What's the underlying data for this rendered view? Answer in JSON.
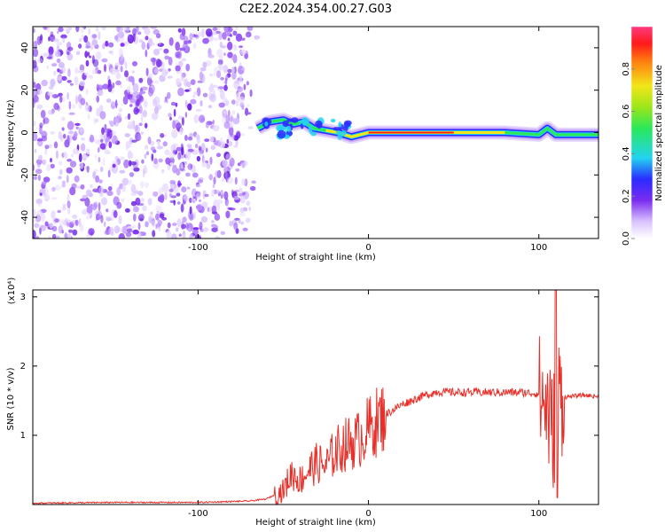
{
  "title": "C2E2.2024.354.00.27.G03",
  "colors": {
    "snr_line": "#e8302a",
    "speckle": "#7b2cf0",
    "axis": "#000000"
  },
  "chart_data": [
    {
      "type": "heatmap",
      "xlabel": "Height of straight line (km)",
      "ylabel": "Frequency (Hz)",
      "xlim": [
        -197,
        135
      ],
      "ylim": [
        -50,
        50
      ],
      "x_ticks": [
        -100,
        0,
        100
      ],
      "x_tick_labels": [
        "-100",
        "0",
        "100"
      ],
      "y_ticks": [
        -40,
        -20,
        0,
        20,
        40
      ],
      "y_tick_labels": [
        "-40",
        "-20",
        "0",
        "20",
        "40"
      ],
      "noise_region_x": [
        -197,
        -65
      ],
      "signal_track": [
        {
          "x": -65,
          "y": 2
        },
        {
          "x": -58,
          "y": 5
        },
        {
          "x": -50,
          "y": 6
        },
        {
          "x": -44,
          "y": 4
        },
        {
          "x": -38,
          "y": 5
        },
        {
          "x": -32,
          "y": 2
        },
        {
          "x": -25,
          "y": 1
        },
        {
          "x": -18,
          "y": 0
        },
        {
          "x": -10,
          "y": -2
        },
        {
          "x": 0,
          "y": 0
        },
        {
          "x": 20,
          "y": 0
        },
        {
          "x": 50,
          "y": 0
        },
        {
          "x": 80,
          "y": 0
        },
        {
          "x": 100,
          "y": -1
        },
        {
          "x": 105,
          "y": 2
        },
        {
          "x": 110,
          "y": -1
        },
        {
          "x": 135,
          "y": -1
        }
      ],
      "colorbar": {
        "label": "Normalized spectral amplitude",
        "range": [
          0,
          1
        ],
        "ticks": [
          0.0,
          0.2,
          0.4,
          0.6,
          0.8
        ],
        "tick_labels": [
          "0.0",
          "0.2",
          "0.4",
          "0.6",
          "0.8"
        ]
      }
    },
    {
      "type": "line",
      "xlabel": "Height of straight line (km)",
      "ylabel": "SNR (10 * v/v)",
      "y_multiplier": "(x10⁴)",
      "xlim": [
        -197,
        135
      ],
      "ylim": [
        0,
        3.1
      ],
      "x_ticks": [
        -100,
        0,
        100
      ],
      "x_tick_labels": [
        "-100",
        "0",
        "100"
      ],
      "y_ticks": [
        1,
        2,
        3
      ],
      "y_tick_labels": [
        "1",
        "2",
        "3"
      ],
      "series": [
        {
          "x": [
            -197,
            -150,
            -100,
            -70,
            -60,
            -50,
            -45,
            -40,
            -35,
            -30,
            -25,
            -20,
            -15,
            -10,
            -5,
            0,
            5,
            10,
            20,
            30,
            40,
            50,
            60,
            70,
            80,
            90,
            100,
            105,
            108,
            110,
            112,
            115,
            125,
            135
          ],
          "y": [
            0.02,
            0.03,
            0.03,
            0.05,
            0.08,
            0.2,
            0.45,
            0.35,
            0.5,
            0.6,
            0.55,
            0.75,
            0.85,
            0.9,
            0.95,
            1.1,
            1.2,
            1.3,
            1.45,
            1.55,
            1.63,
            1.62,
            1.62,
            1.62,
            1.62,
            1.62,
            1.6,
            1.4,
            1.0,
            1.3,
            1.6,
            1.55,
            1.58,
            1.56
          ]
        }
      ]
    }
  ]
}
